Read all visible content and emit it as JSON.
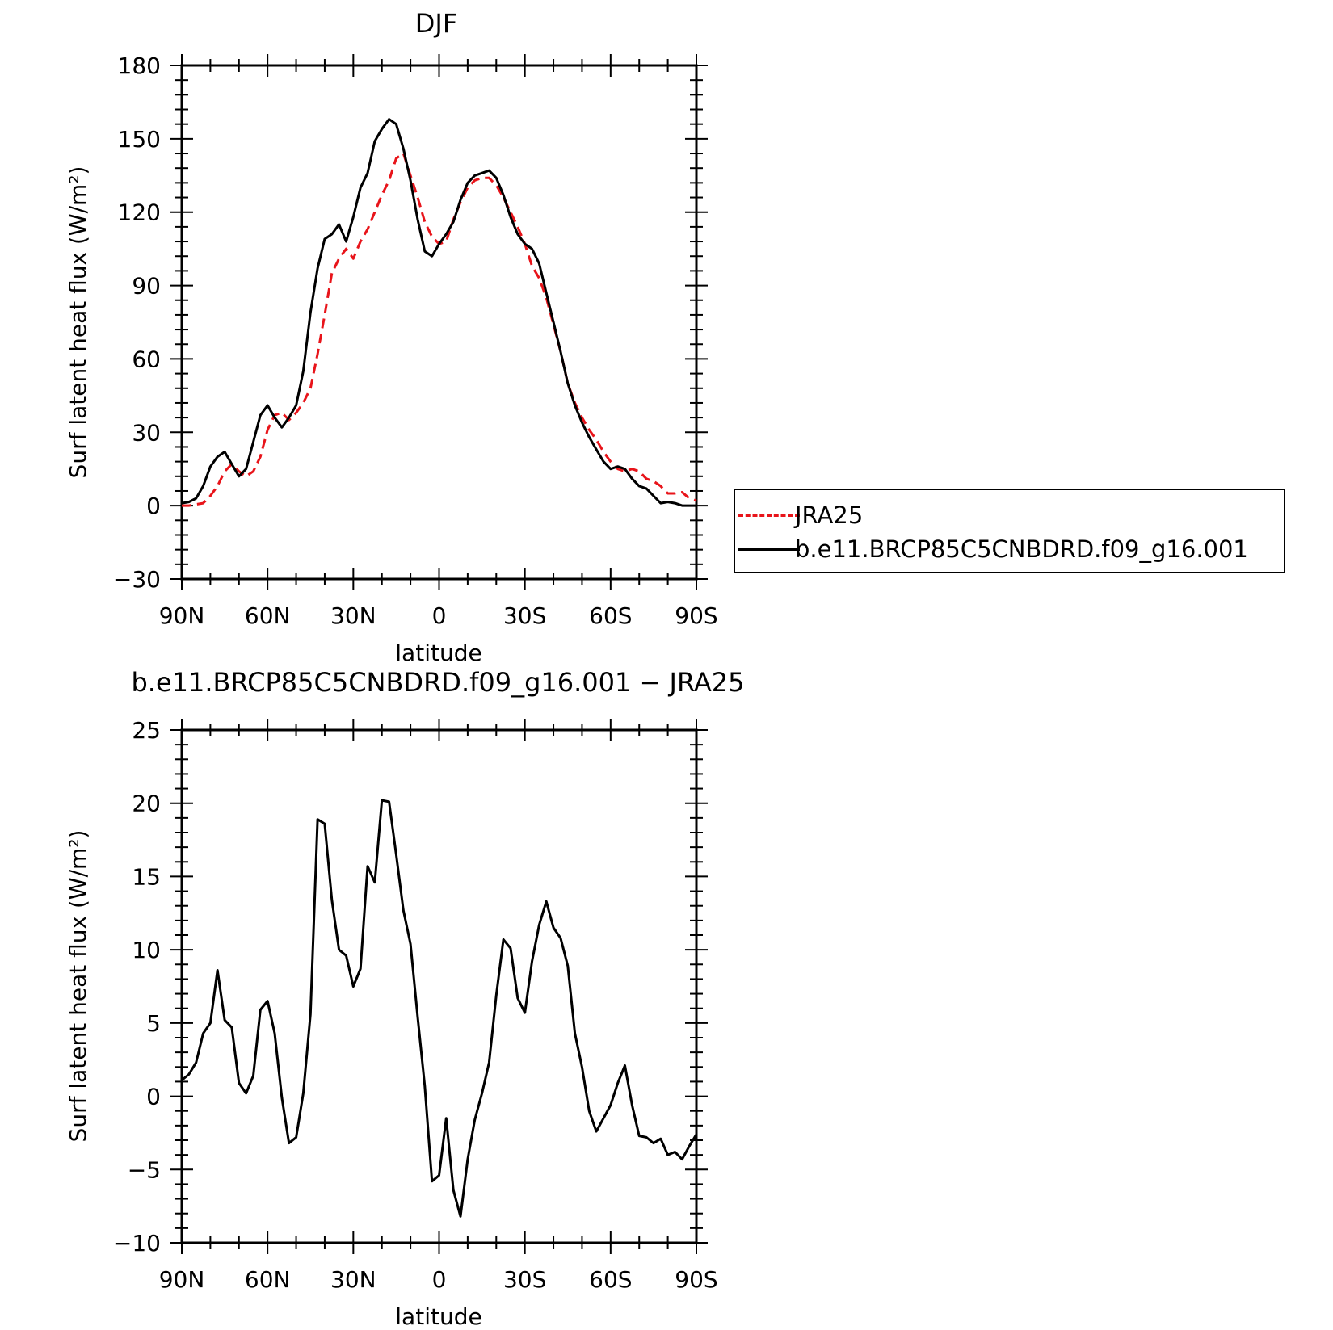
{
  "chart_data": [
    {
      "type": "line",
      "title": "DJF",
      "xlabel": "latitude",
      "ylabel": "Surf latent heat flux (W/m²)",
      "xlim": [
        90,
        -90
      ],
      "ylim": [
        -30,
        180
      ],
      "yticks": [
        -30,
        0,
        30,
        60,
        90,
        120,
        150,
        180
      ],
      "xticks": [
        90,
        60,
        30,
        0,
        -30,
        -60,
        -90
      ],
      "xtick_labels": [
        "90N",
        "60N",
        "30N",
        "0",
        "30S",
        "60S",
        "90S"
      ],
      "ytick_labels": [
        "−30",
        "0",
        "30",
        "60",
        "90",
        "120",
        "150",
        "180"
      ],
      "grid": false,
      "legend_position": "outside-right",
      "series": [
        {
          "name": "JRA25",
          "color": "#e8141a",
          "style": "dashed",
          "x": [
            90,
            87.5,
            85,
            82.5,
            80,
            77.5,
            75,
            72.5,
            70,
            67.5,
            65,
            62.5,
            60,
            57.5,
            55,
            52.5,
            50,
            47.5,
            45,
            42.5,
            40,
            37.5,
            35,
            32.5,
            30,
            27.5,
            25,
            22.5,
            20,
            17.5,
            15,
            12.5,
            10,
            7.5,
            5,
            2.5,
            0,
            -2.5,
            -5,
            -7.5,
            -10,
            -12.5,
            -15,
            -17.5,
            -20,
            -22.5,
            -25,
            -27.5,
            -30,
            -32.5,
            -35,
            -37.5,
            -40,
            -42.5,
            -45,
            -47.5,
            -50,
            -52.5,
            -55,
            -57.5,
            -60,
            -62.5,
            -65,
            -67.5,
            -70,
            -72.5,
            -75,
            -77.5,
            -80,
            -82.5,
            -85,
            -87.5,
            -90
          ],
          "y": [
            0,
            0,
            0.5,
            1,
            4,
            8,
            14,
            17,
            14,
            12,
            14,
            20,
            31,
            37,
            38,
            35,
            38,
            42,
            48,
            62,
            78,
            95,
            101,
            105,
            101,
            108,
            113,
            120,
            127,
            133,
            142,
            144,
            135,
            126,
            116,
            110,
            107,
            108,
            117,
            124,
            130,
            133,
            134,
            134,
            131,
            126,
            120,
            114,
            107,
            98,
            93,
            85,
            74,
            63,
            50,
            42,
            36,
            31,
            27,
            22,
            18,
            15,
            14,
            15,
            14,
            11,
            10,
            8,
            5,
            5,
            5.5,
            3,
            2
          ]
        },
        {
          "name": "b.e11.BRCP85C5CNBDRD.f09_g16.001",
          "color": "#000000",
          "style": "solid",
          "x": [
            90,
            87.5,
            85,
            82.5,
            80,
            77.5,
            75,
            72.5,
            70,
            67.5,
            65,
            62.5,
            60,
            57.5,
            55,
            52.5,
            50,
            47.5,
            45,
            42.5,
            40,
            37.5,
            35,
            32.5,
            30,
            27.5,
            25,
            22.5,
            20,
            17.5,
            15,
            12.5,
            10,
            7.5,
            5,
            2.5,
            0,
            -2.5,
            -5,
            -7.5,
            -10,
            -12.5,
            -15,
            -17.5,
            -20,
            -22.5,
            -25,
            -27.5,
            -30,
            -32.5,
            -35,
            -37.5,
            -40,
            -42.5,
            -45,
            -47.5,
            -50,
            -52.5,
            -55,
            -57.5,
            -60,
            -62.5,
            -65,
            -67.5,
            -70,
            -72.5,
            -75,
            -77.5,
            -80,
            -82.5,
            -85,
            -87.5,
            -90
          ],
          "y": [
            1,
            1.5,
            3,
            8,
            16,
            20,
            22,
            17,
            12,
            15,
            26,
            37,
            41,
            36,
            32,
            36,
            41,
            55,
            79,
            97,
            109,
            111,
            115,
            108,
            118,
            130,
            136,
            149,
            154,
            158,
            156,
            146,
            133,
            117,
            104,
            102,
            107,
            111,
            116,
            125,
            132,
            135,
            136,
            137,
            134,
            127,
            118,
            111,
            107,
            105,
            99,
            87,
            75,
            63,
            50,
            41,
            34,
            28,
            23,
            18,
            15,
            16,
            15,
            11,
            8,
            7,
            4,
            1,
            1.5,
            1,
            0,
            0,
            0
          ]
        }
      ]
    },
    {
      "type": "line",
      "title": "b.e11.BRCP85C5CNBDRD.f09_g16.001 − JRA25",
      "xlabel": "latitude",
      "ylabel": "Surf latent heat flux (W/m²)",
      "xlim": [
        90,
        -90
      ],
      "ylim": [
        -10,
        25
      ],
      "yticks": [
        -10,
        -5,
        0,
        5,
        10,
        15,
        20,
        25
      ],
      "xticks": [
        90,
        60,
        30,
        0,
        -30,
        -60,
        -90
      ],
      "xtick_labels": [
        "90N",
        "60N",
        "30N",
        "0",
        "30S",
        "60S",
        "90S"
      ],
      "ytick_labels": [
        "−10",
        "−5",
        "0",
        "5",
        "10",
        "15",
        "20",
        "25"
      ],
      "grid": false,
      "series": [
        {
          "color": "#000000",
          "style": "solid",
          "x": [
            90,
            87.5,
            85,
            82.5,
            80,
            77.5,
            75,
            72.5,
            70,
            67.5,
            65,
            62.5,
            60,
            57.5,
            55,
            52.5,
            50,
            47.5,
            45,
            42.5,
            40,
            37.5,
            35,
            32.5,
            30,
            27.5,
            25,
            22.5,
            20,
            17.5,
            15,
            12.5,
            10,
            7.5,
            5,
            2.5,
            0,
            -2.5,
            -5,
            -7.5,
            -10,
            -12.5,
            -15,
            -17.5,
            -20,
            -22.5,
            -25,
            -27.5,
            -30,
            -32.5,
            -35,
            -37.5,
            -40,
            -42.5,
            -45,
            -47.5,
            -50,
            -52.5,
            -55,
            -57.5,
            -60,
            -62.5,
            -65,
            -67.5,
            -70,
            -72.5,
            -75,
            -77.5,
            -80,
            -82.5,
            -85,
            -87.5,
            -90
          ],
          "y": [
            1.1,
            1.5,
            2.3,
            4.3,
            5,
            8.6,
            5.2,
            4.7,
            0.9,
            0.2,
            1.4,
            5.9,
            6.5,
            4.3,
            -0.1,
            -3.2,
            -2.8,
            0.2,
            5.6,
            18.9,
            18.6,
            13.4,
            10,
            9.6,
            7.5,
            8.7,
            15.7,
            14.6,
            20.2,
            20.1,
            16.5,
            12.7,
            10.4,
            5.4,
            0.7,
            -5.8,
            -5.4,
            -1.5,
            -6.4,
            -8.2,
            -4.3,
            -1.6,
            0.2,
            2.3,
            6.9,
            10.7,
            10.1,
            6.7,
            5.7,
            9.2,
            11.7,
            13.3,
            11.5,
            10.8,
            8.9,
            4.3,
            2,
            -1,
            -2.4,
            -1.5,
            -0.6,
            0.9,
            2.1,
            -0.6,
            -2.7,
            -2.8,
            -3.2,
            -2.9,
            -4,
            -3.8,
            -4.3,
            -3.4,
            -2.6
          ]
        }
      ]
    }
  ]
}
